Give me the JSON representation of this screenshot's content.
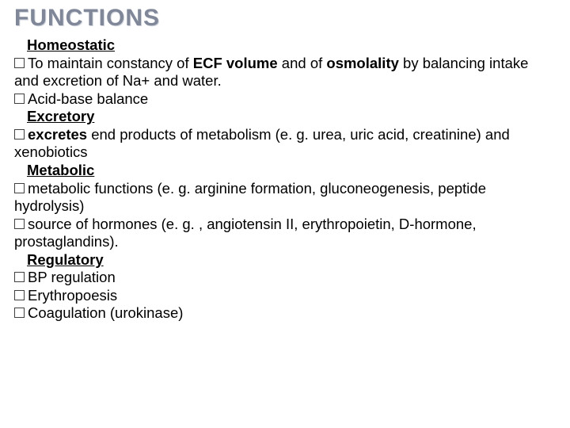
{
  "slide": {
    "title": "FUNCTIONS",
    "title_color": "#7f8798",
    "title_fontsize": 30,
    "body_fontsize": 18.5,
    "body_color": "#000000",
    "background_color": "#ffffff",
    "bullet_box_border": "#404040",
    "lines": {
      "h1": "Homeostatic",
      "b1a": "To maintain constancy of ",
      "b1b": "ECF volume",
      "b1c": " and of ",
      "b1d": "osmolality",
      "b1e": " by balancing intake and excretion of Na+ and water.",
      "b2": "Acid-base balance",
      "h2": "Excretory",
      "b3a": "excretes",
      "b3b": " end products of metabolism (e. g. urea, uric acid, creatinine) and xenobiotics",
      "h3": "Metabolic",
      "b4a": "metabolic functions (e. g. arginine formation, gluconeogenesis, peptide hydrolysis)",
      "b5a": "source of hormones (e. g. , angiotensin II, erythropoietin, D-hormone, prostaglandins).",
      "h4": "Regulatory",
      "b6": "BP regulation",
      "b7": "Erythropoesis",
      "b8": "Coagulation (urokinase)"
    }
  }
}
